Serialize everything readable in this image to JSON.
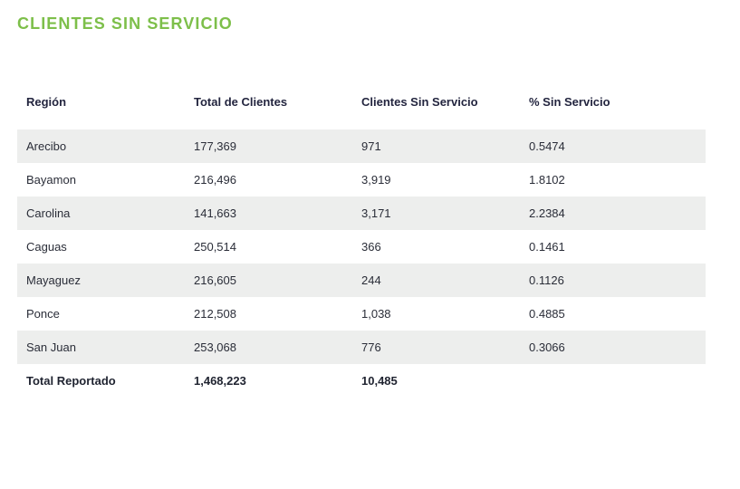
{
  "title": "CLIENTES SIN SERVICIO",
  "table": {
    "headers": [
      "Región",
      "Total de Clientes",
      "Clientes Sin Servicio",
      "% Sin Servicio"
    ],
    "rows": [
      {
        "region": "Arecibo",
        "total": "177,369",
        "sin_servicio": "971",
        "pct": "0.5474"
      },
      {
        "region": "Bayamon",
        "total": "216,496",
        "sin_servicio": "3,919",
        "pct": "1.8102"
      },
      {
        "region": "Carolina",
        "total": "141,663",
        "sin_servicio": "3,171",
        "pct": "2.2384"
      },
      {
        "region": "Caguas",
        "total": "250,514",
        "sin_servicio": "366",
        "pct": "0.1461"
      },
      {
        "region": "Mayaguez",
        "total": "216,605",
        "sin_servicio": "244",
        "pct": "0.1126"
      },
      {
        "region": "Ponce",
        "total": "212,508",
        "sin_servicio": "1,038",
        "pct": "0.4885"
      },
      {
        "region": "San Juan",
        "total": "253,068",
        "sin_servicio": "776",
        "pct": "0.3066"
      }
    ],
    "footer": {
      "label": "Total Reportado",
      "total": "1,468,223",
      "sin_servicio": "10,485",
      "pct": ""
    }
  },
  "colors": {
    "title": "#7dbf4a",
    "header_text": "#23253f",
    "row_shade": "#edeeed"
  }
}
